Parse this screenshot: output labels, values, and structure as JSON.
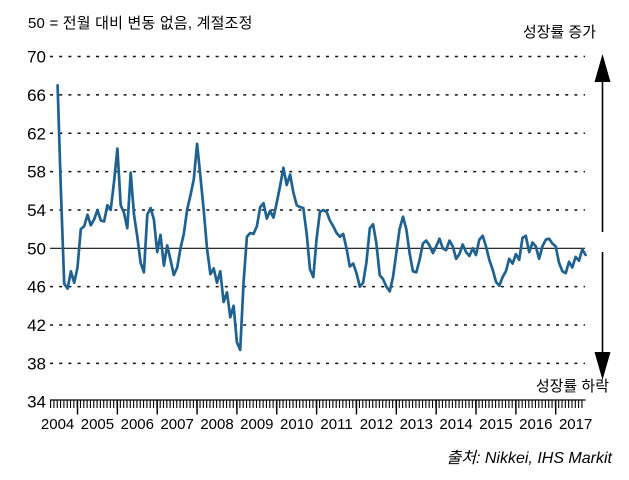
{
  "header": {
    "title": "50 = 전월 대비 변동 없음, 계절조정"
  },
  "annotations": {
    "growth_up": "성장률 증가",
    "growth_down": "성장률 하락"
  },
  "source": {
    "label": "출처: Nikkei, IHS Markit"
  },
  "colors": {
    "line": "#1f6190",
    "grid": "#111111",
    "axis": "#000000",
    "text": "#000000"
  },
  "chart_data": {
    "type": "line",
    "title": "50 = 전월 대비 변동 없음, 계절조정",
    "xlabel": "",
    "ylabel": "",
    "ylim": [
      34,
      70
    ],
    "baseline": 50,
    "grid": "dashed horizontal",
    "y_ticks": [
      70,
      66,
      62,
      58,
      54,
      50,
      46,
      42,
      38,
      34
    ],
    "x_tick_labels": [
      "2004",
      "2005",
      "2006",
      "2007",
      "2008",
      "2009",
      "2010",
      "2011",
      "2012",
      "2013",
      "2014",
      "2015",
      "2016",
      "2017"
    ],
    "points_per_year": 12,
    "values": [
      67.0,
      56.0,
      46.3,
      45.8,
      47.6,
      46.4,
      48.0,
      52.0,
      52.3,
      53.5,
      52.4,
      53.0,
      54.0,
      52.9,
      52.8,
      54.5,
      54.0,
      57.0,
      60.4,
      54.5,
      53.7,
      52.1,
      57.9,
      53.5,
      51.2,
      48.5,
      47.5,
      53.5,
      54.2,
      53.0,
      49.6,
      51.4,
      48.2,
      50.3,
      48.8,
      47.2,
      48.0,
      50.0,
      51.5,
      54.0,
      55.5,
      57.2,
      60.9,
      57.5,
      54.0,
      50.0,
      47.3,
      47.9,
      46.4,
      47.6,
      44.4,
      45.4,
      42.8,
      44.0,
      40.2,
      39.4,
      46.5,
      51.2,
      51.6,
      51.5,
      52.3,
      54.3,
      54.7,
      53.1,
      53.9,
      53.2,
      54.8,
      56.5,
      58.4,
      56.6,
      57.7,
      55.8,
      54.5,
      54.3,
      54.2,
      51.5,
      47.8,
      47.0,
      51.0,
      53.8,
      54.0,
      53.8,
      52.9,
      52.3,
      51.6,
      51.2,
      51.5,
      50.0,
      48.1,
      48.4,
      47.4,
      46.0,
      46.4,
      48.5,
      52.1,
      52.5,
      50.5,
      47.2,
      46.8,
      46.0,
      45.5,
      47.0,
      49.5,
      52.0,
      53.3,
      52.0,
      49.5,
      47.6,
      47.5,
      48.8,
      50.5,
      50.8,
      50.3,
      49.5,
      50.2,
      51.0,
      50.0,
      49.8,
      50.8,
      50.2,
      48.9,
      49.4,
      50.4,
      49.6,
      49.2,
      50.0,
      49.3,
      50.9,
      51.3,
      50.2,
      48.8,
      47.8,
      46.5,
      46.1,
      47.0,
      47.6,
      48.9,
      48.4,
      49.4,
      48.8,
      51.1,
      51.3,
      49.6,
      50.6,
      50.2,
      48.9,
      50.2,
      50.9,
      51.0,
      50.5,
      50.2,
      48.5,
      47.6,
      47.4,
      48.6,
      48.0,
      49.1,
      48.7,
      49.9,
      49.3
    ]
  }
}
